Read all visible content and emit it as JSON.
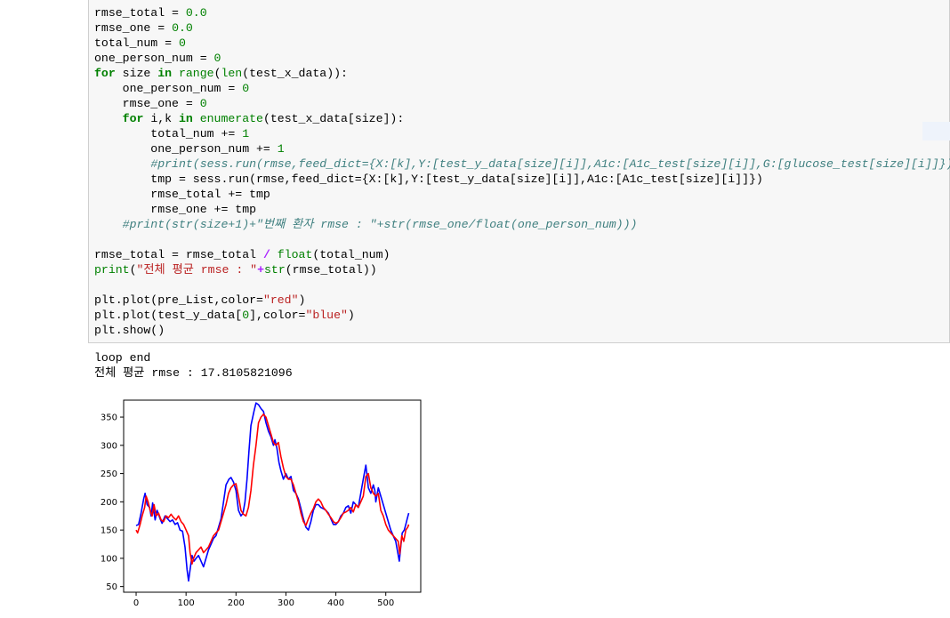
{
  "code_lines": [
    [
      [
        "p",
        "rmse_total = "
      ],
      [
        "n",
        "0.0"
      ]
    ],
    [
      [
        "p",
        "rmse_one = "
      ],
      [
        "n",
        "0.0"
      ]
    ],
    [
      [
        "p",
        "total_num = "
      ],
      [
        "n",
        "0"
      ]
    ],
    [
      [
        "p",
        "one_person_num = "
      ],
      [
        "n",
        "0"
      ]
    ],
    [
      [
        "k",
        "for"
      ],
      [
        "p",
        " size "
      ],
      [
        "k",
        "in"
      ],
      [
        "p",
        " "
      ],
      [
        "b",
        "range"
      ],
      [
        "p",
        "("
      ],
      [
        "b",
        "len"
      ],
      [
        "p",
        "(test_x_data)):"
      ]
    ],
    [
      [
        "p",
        "    one_person_num = "
      ],
      [
        "n",
        "0"
      ]
    ],
    [
      [
        "p",
        "    rmse_one = "
      ],
      [
        "n",
        "0"
      ]
    ],
    [
      [
        "p",
        "    "
      ],
      [
        "k",
        "for"
      ],
      [
        "p",
        " i,k "
      ],
      [
        "k",
        "in"
      ],
      [
        "p",
        " "
      ],
      [
        "b",
        "enumerate"
      ],
      [
        "p",
        "(test_x_data[size]):"
      ]
    ],
    [
      [
        "p",
        "        total_num += "
      ],
      [
        "n",
        "1"
      ]
    ],
    [
      [
        "p",
        "        one_person_num += "
      ],
      [
        "n",
        "1"
      ]
    ],
    [
      [
        "p",
        "        "
      ],
      [
        "c",
        "#print(sess.run(rmse,feed_dict={X:[k],Y:[test_y_data[size][i]],A1c:[A1c_test[size][i]],G:[glucose_test[size][i]]}))"
      ]
    ],
    [
      [
        "p",
        "        tmp = sess.run(rmse,feed_dict={X:[k],Y:[test_y_data[size][i]],A1c:[A1c_test[size][i]]})"
      ]
    ],
    [
      [
        "p",
        "        rmse_total += tmp"
      ]
    ],
    [
      [
        "p",
        "        rmse_one += tmp"
      ]
    ],
    [
      [
        "p",
        "    "
      ],
      [
        "c",
        "#print(str(size+1)+\"번째 환자 rmse : \"+str(rmse_one/float(one_person_num)))"
      ]
    ],
    [
      [
        "p",
        ""
      ]
    ],
    [
      [
        "p",
        "rmse_total = rmse_total "
      ],
      [
        "o",
        "/"
      ],
      [
        "p",
        " "
      ],
      [
        "b",
        "float"
      ],
      [
        "p",
        "(total_num)"
      ]
    ],
    [
      [
        "b",
        "print"
      ],
      [
        "p",
        "("
      ],
      [
        "s",
        "\"전체 평균 rmse : \""
      ],
      [
        "o",
        "+"
      ],
      [
        "b",
        "str"
      ],
      [
        "p",
        "(rmse_total))"
      ]
    ],
    [
      [
        "p",
        ""
      ]
    ],
    [
      [
        "p",
        "plt.plot(pre_List,color="
      ],
      [
        "s",
        "\"red\""
      ],
      [
        "p",
        ")"
      ]
    ],
    [
      [
        "p",
        "plt.plot(test_y_data["
      ],
      [
        "n",
        "0"
      ],
      [
        "p",
        "],color="
      ],
      [
        "s",
        "\"blue\""
      ],
      [
        "p",
        ")"
      ]
    ],
    [
      [
        "p",
        "plt.show()"
      ]
    ]
  ],
  "output": {
    "line1": "loop end",
    "line2": "전체 평균 rmse : 17.8105821096"
  },
  "chart_data": {
    "type": "line",
    "xlim": [
      -25,
      570
    ],
    "ylim": [
      40,
      380
    ],
    "x_ticks": [
      0,
      100,
      200,
      300,
      400,
      500
    ],
    "y_ticks": [
      50,
      100,
      150,
      200,
      250,
      300,
      350
    ],
    "grid": false,
    "series": [
      {
        "color": "#0000ff",
        "points": [
          [
            0,
            158
          ],
          [
            5,
            160
          ],
          [
            10,
            180
          ],
          [
            15,
            205
          ],
          [
            18,
            215
          ],
          [
            22,
            195
          ],
          [
            27,
            190
          ],
          [
            30,
            175
          ],
          [
            33,
            198
          ],
          [
            38,
            168
          ],
          [
            42,
            185
          ],
          [
            48,
            170
          ],
          [
            52,
            162
          ],
          [
            58,
            175
          ],
          [
            63,
            170
          ],
          [
            68,
            165
          ],
          [
            73,
            168
          ],
          [
            78,
            160
          ],
          [
            83,
            163
          ],
          [
            88,
            150
          ],
          [
            93,
            148
          ],
          [
            98,
            120
          ],
          [
            102,
            80
          ],
          [
            105,
            60
          ],
          [
            108,
            80
          ],
          [
            112,
            105
          ],
          [
            116,
            95
          ],
          [
            120,
            100
          ],
          [
            125,
            105
          ],
          [
            130,
            95
          ],
          [
            135,
            85
          ],
          [
            140,
            100
          ],
          [
            145,
            115
          ],
          [
            150,
            125
          ],
          [
            155,
            135
          ],
          [
            160,
            140
          ],
          [
            165,
            155
          ],
          [
            170,
            170
          ],
          [
            175,
            200
          ],
          [
            180,
            230
          ],
          [
            186,
            240
          ],
          [
            190,
            243
          ],
          [
            195,
            235
          ],
          [
            200,
            220
          ],
          [
            205,
            185
          ],
          [
            210,
            175
          ],
          [
            214,
            180
          ],
          [
            218,
            200
          ],
          [
            222,
            240
          ],
          [
            226,
            290
          ],
          [
            230,
            335
          ],
          [
            236,
            360
          ],
          [
            240,
            375
          ],
          [
            245,
            372
          ],
          [
            250,
            365
          ],
          [
            255,
            360
          ],
          [
            260,
            340
          ],
          [
            265,
            325
          ],
          [
            270,
            315
          ],
          [
            275,
            300
          ],
          [
            278,
            310
          ],
          [
            282,
            295
          ],
          [
            286,
            270
          ],
          [
            290,
            255
          ],
          [
            295,
            240
          ],
          [
            300,
            250
          ],
          [
            305,
            240
          ],
          [
            310,
            245
          ],
          [
            315,
            220
          ],
          [
            320,
            215
          ],
          [
            325,
            205
          ],
          [
            330,
            188
          ],
          [
            335,
            170
          ],
          [
            340,
            155
          ],
          [
            345,
            150
          ],
          [
            350,
            165
          ],
          [
            355,
            185
          ],
          [
            360,
            195
          ],
          [
            365,
            195
          ],
          [
            370,
            190
          ],
          [
            375,
            188
          ],
          [
            380,
            185
          ],
          [
            385,
            180
          ],
          [
            390,
            170
          ],
          [
            395,
            160
          ],
          [
            400,
            160
          ],
          [
            405,
            165
          ],
          [
            410,
            175
          ],
          [
            415,
            180
          ],
          [
            420,
            190
          ],
          [
            425,
            193
          ],
          [
            430,
            180
          ],
          [
            435,
            200
          ],
          [
            440,
            195
          ],
          [
            445,
            190
          ],
          [
            450,
            215
          ],
          [
            455,
            240
          ],
          [
            460,
            265
          ],
          [
            462,
            250
          ],
          [
            465,
            225
          ],
          [
            470,
            215
          ],
          [
            475,
            230
          ],
          [
            478,
            220
          ],
          [
            480,
            200
          ],
          [
            485,
            225
          ],
          [
            490,
            210
          ],
          [
            495,
            195
          ],
          [
            500,
            180
          ],
          [
            505,
            165
          ],
          [
            510,
            150
          ],
          [
            515,
            140
          ],
          [
            520,
            130
          ],
          [
            524,
            110
          ],
          [
            527,
            95
          ],
          [
            530,
            120
          ],
          [
            533,
            145
          ],
          [
            537,
            150
          ],
          [
            540,
            160
          ],
          [
            543,
            170
          ],
          [
            546,
            180
          ]
        ]
      },
      {
        "color": "#ff0000",
        "points": [
          [
            0,
            150
          ],
          [
            3,
            145
          ],
          [
            8,
            160
          ],
          [
            12,
            175
          ],
          [
            17,
            190
          ],
          [
            20,
            210
          ],
          [
            24,
            200
          ],
          [
            28,
            185
          ],
          [
            32,
            175
          ],
          [
            36,
            195
          ],
          [
            40,
            175
          ],
          [
            45,
            180
          ],
          [
            50,
            168
          ],
          [
            55,
            165
          ],
          [
            60,
            175
          ],
          [
            65,
            172
          ],
          [
            70,
            178
          ],
          [
            75,
            172
          ],
          [
            80,
            168
          ],
          [
            85,
            175
          ],
          [
            90,
            165
          ],
          [
            95,
            160
          ],
          [
            100,
            150
          ],
          [
            105,
            140
          ],
          [
            108,
            110
          ],
          [
            112,
            90
          ],
          [
            115,
            100
          ],
          [
            120,
            110
          ],
          [
            125,
            115
          ],
          [
            130,
            120
          ],
          [
            135,
            110
          ],
          [
            140,
            115
          ],
          [
            145,
            120
          ],
          [
            150,
            130
          ],
          [
            155,
            140
          ],
          [
            160,
            145
          ],
          [
            165,
            150
          ],
          [
            170,
            165
          ],
          [
            175,
            180
          ],
          [
            180,
            195
          ],
          [
            185,
            215
          ],
          [
            190,
            225
          ],
          [
            195,
            230
          ],
          [
            200,
            232
          ],
          [
            205,
            210
          ],
          [
            210,
            185
          ],
          [
            215,
            178
          ],
          [
            220,
            175
          ],
          [
            225,
            190
          ],
          [
            230,
            220
          ],
          [
            235,
            265
          ],
          [
            240,
            300
          ],
          [
            245,
            340
          ],
          [
            250,
            350
          ],
          [
            255,
            355
          ],
          [
            260,
            350
          ],
          [
            265,
            335
          ],
          [
            270,
            320
          ],
          [
            275,
            305
          ],
          [
            280,
            300
          ],
          [
            285,
            305
          ],
          [
            290,
            280
          ],
          [
            295,
            260
          ],
          [
            300,
            245
          ],
          [
            305,
            240
          ],
          [
            310,
            240
          ],
          [
            315,
            230
          ],
          [
            320,
            215
          ],
          [
            325,
            200
          ],
          [
            330,
            180
          ],
          [
            335,
            165
          ],
          [
            340,
            158
          ],
          [
            345,
            170
          ],
          [
            350,
            180
          ],
          [
            355,
            188
          ],
          [
            360,
            200
          ],
          [
            365,
            205
          ],
          [
            370,
            200
          ],
          [
            375,
            190
          ],
          [
            380,
            185
          ],
          [
            385,
            178
          ],
          [
            390,
            172
          ],
          [
            395,
            165
          ],
          [
            400,
            162
          ],
          [
            405,
            165
          ],
          [
            410,
            172
          ],
          [
            415,
            180
          ],
          [
            420,
            182
          ],
          [
            425,
            185
          ],
          [
            430,
            190
          ],
          [
            435,
            182
          ],
          [
            440,
            195
          ],
          [
            445,
            190
          ],
          [
            450,
            200
          ],
          [
            455,
            210
          ],
          [
            460,
            245
          ],
          [
            465,
            250
          ],
          [
            470,
            225
          ],
          [
            475,
            215
          ],
          [
            480,
            210
          ],
          [
            485,
            215
          ],
          [
            490,
            185
          ],
          [
            495,
            175
          ],
          [
            500,
            160
          ],
          [
            505,
            150
          ],
          [
            510,
            145
          ],
          [
            515,
            140
          ],
          [
            520,
            135
          ],
          [
            525,
            130
          ],
          [
            528,
            108
          ],
          [
            532,
            140
          ],
          [
            536,
            130
          ],
          [
            540,
            150
          ],
          [
            544,
            155
          ],
          [
            546,
            160
          ]
        ]
      }
    ]
  }
}
